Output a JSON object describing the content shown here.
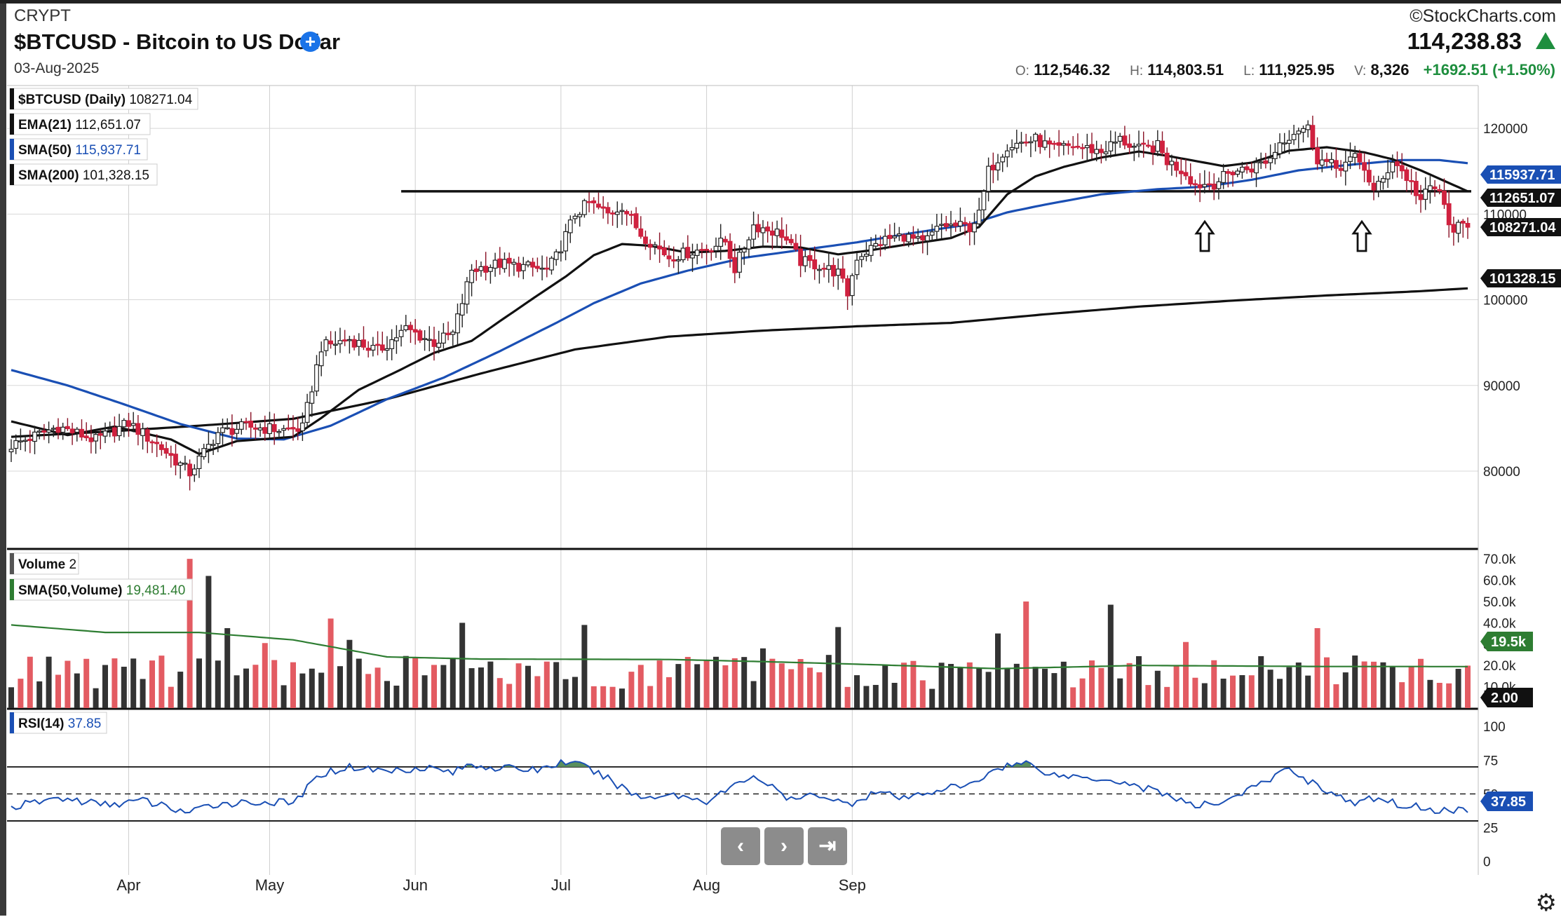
{
  "header": {
    "exchange": "CRYPT",
    "title": "$BTCUSD - Bitcoin to US Dollar",
    "date": "03-Aug-2025",
    "brand": "©StockCharts.com",
    "last_price": "114,238.83",
    "ohlc": {
      "o_label": "O:",
      "o": "112,546.32",
      "h_label": "H:",
      "h": "114,803.51",
      "l_label": "L:",
      "l": "111,925.95",
      "v_label": "V:",
      "v": "8,326",
      "change": "+1692.51 (+1.50%)"
    },
    "up_color": "#1e8e3e"
  },
  "legend": {
    "price": {
      "name": "$BTCUSD (Daily)",
      "value": "108271.04"
    },
    "ema21": {
      "name": "EMA(21)",
      "value": "112,651.07"
    },
    "sma50": {
      "name": "SMA(50)",
      "value": "115,937.71"
    },
    "sma200": {
      "name": "SMA(200)",
      "value": "101,328.15"
    },
    "volume": {
      "name": "Volume",
      "value": "2"
    },
    "vol_sma": {
      "name": "SMA(50,Volume)",
      "value": "19,481.40"
    },
    "rsi": {
      "name": "RSI(14)",
      "value": "37.85"
    }
  },
  "icons": {
    "add": "plus-circle-icon",
    "trend_up": "triangle-up-icon",
    "settings": "gear-icon",
    "prev": "chevron-left-icon",
    "next": "chevron-right-icon",
    "end": "skip-to-end-icon"
  },
  "nav": {
    "prev": "‹",
    "next": "›",
    "end": "⇥"
  },
  "colors": {
    "up": "#ffffff",
    "down": "#d0213f",
    "ema21": "#111111",
    "sma50": "#1a4fb4",
    "sma200": "#111111",
    "vol_up": "#333333",
    "vol_down": "#e35b62",
    "vol_sma": "#2e7d32",
    "rsi": "#1a4fb4",
    "rsi_fill": "#5a8f5e"
  },
  "chart_data": [
    {
      "type": "candlestick",
      "title": "$BTCUSD (Daily)",
      "x_labels": [
        "Apr",
        "May",
        "Jun",
        "Jul",
        "Aug",
        "Sep"
      ],
      "y_ticks": [
        80000,
        90000,
        100000,
        110000,
        120000
      ],
      "y_tick_labels": [
        "80000",
        "90000",
        "100000",
        "110000",
        "120000"
      ],
      "ylim": [
        71000,
        125000
      ],
      "resistance_level": 112651,
      "arrows_at": [
        "2025-08-03",
        "2025-08-23"
      ],
      "last_price_labels": [
        "115937.71",
        "112651.07",
        "108271.04",
        "101328.15"
      ],
      "price_keypoints": [
        [
          0,
          83000
        ],
        [
          10,
          85200
        ],
        [
          18,
          83600
        ],
        [
          25,
          85600
        ],
        [
          32,
          82700
        ],
        [
          38,
          79800
        ],
        [
          44,
          84500
        ],
        [
          50,
          85200
        ],
        [
          58,
          84800
        ],
        [
          62,
          85000
        ],
        [
          66,
          94500
        ],
        [
          72,
          95400
        ],
        [
          78,
          94000
        ],
        [
          84,
          96600
        ],
        [
          90,
          95000
        ],
        [
          94,
          96000
        ],
        [
          98,
          103500
        ],
        [
          104,
          104200
        ],
        [
          110,
          103800
        ],
        [
          114,
          103400
        ],
        [
          116,
          105000
        ],
        [
          120,
          110000
        ],
        [
          123,
          111300
        ],
        [
          127,
          110000
        ],
        [
          130,
          111000
        ],
        [
          134,
          107700
        ],
        [
          140,
          105000
        ],
        [
          148,
          106000
        ],
        [
          152,
          106800
        ],
        [
          154,
          103600
        ],
        [
          158,
          108700
        ],
        [
          164,
          107700
        ],
        [
          168,
          104500
        ],
        [
          172,
          104000
        ],
        [
          176,
          103100
        ],
        [
          178,
          100700
        ],
        [
          180,
          105000
        ],
        [
          186,
          107000
        ],
        [
          190,
          107500
        ],
        [
          194,
          106500
        ],
        [
          198,
          108700
        ],
        [
          204,
          108500
        ],
        [
          206,
          109900
        ],
        [
          208,
          115000
        ],
        [
          212,
          118000
        ],
        [
          214,
          118200
        ],
        [
          218,
          118700
        ],
        [
          222,
          117500
        ],
        [
          226,
          118000
        ],
        [
          232,
          117300
        ],
        [
          236,
          118700
        ],
        [
          240,
          117500
        ],
        [
          244,
          117900
        ],
        [
          246,
          116200
        ],
        [
          250,
          114800
        ],
        [
          252,
          113400
        ],
        [
          256,
          113600
        ],
        [
          260,
          115000
        ],
        [
          264,
          115400
        ],
        [
          268,
          116500
        ],
        [
          270,
          118400
        ],
        [
          274,
          120000
        ],
        [
          276,
          120000
        ],
        [
          278,
          116500
        ],
        [
          282,
          115400
        ],
        [
          286,
          116500
        ],
        [
          288,
          115400
        ],
        [
          290,
          112600
        ],
        [
          292,
          114000
        ],
        [
          294,
          116400
        ],
        [
          296,
          115000
        ],
        [
          298,
          113500
        ],
        [
          300,
          111600
        ],
        [
          302,
          113000
        ],
        [
          304,
          112800
        ],
        [
          306,
          108500
        ],
        [
          308,
          108400
        ],
        [
          310,
          108271
        ]
      ],
      "ema21_keypoints": [
        [
          0,
          85800
        ],
        [
          12,
          84200
        ],
        [
          22,
          85200
        ],
        [
          34,
          83700
        ],
        [
          40,
          82000
        ],
        [
          48,
          83500
        ],
        [
          60,
          84000
        ],
        [
          66,
          86200
        ],
        [
          74,
          89500
        ],
        [
          82,
          91600
        ],
        [
          90,
          93800
        ],
        [
          98,
          95200
        ],
        [
          104,
          97500
        ],
        [
          112,
          100500
        ],
        [
          118,
          102700
        ],
        [
          124,
          105200
        ],
        [
          130,
          106500
        ],
        [
          136,
          106300
        ],
        [
          144,
          105500
        ],
        [
          152,
          105700
        ],
        [
          160,
          106200
        ],
        [
          168,
          106100
        ],
        [
          176,
          105300
        ],
        [
          182,
          105700
        ],
        [
          190,
          106400
        ],
        [
          200,
          107200
        ],
        [
          206,
          108500
        ],
        [
          212,
          112300
        ],
        [
          218,
          114400
        ],
        [
          224,
          115500
        ],
        [
          232,
          116600
        ],
        [
          240,
          117300
        ],
        [
          246,
          116800
        ],
        [
          252,
          116200
        ],
        [
          258,
          115600
        ],
        [
          264,
          116000
        ],
        [
          272,
          117400
        ],
        [
          280,
          117800
        ],
        [
          288,
          117200
        ],
        [
          294,
          116400
        ],
        [
          300,
          115100
        ],
        [
          310,
          112651
        ]
      ],
      "sma50_keypoints": [
        [
          0,
          91800
        ],
        [
          12,
          90000
        ],
        [
          24,
          87800
        ],
        [
          36,
          85500
        ],
        [
          48,
          83800
        ],
        [
          58,
          83700
        ],
        [
          68,
          85300
        ],
        [
          80,
          88400
        ],
        [
          92,
          90900
        ],
        [
          104,
          94000
        ],
        [
          116,
          97300
        ],
        [
          124,
          99600
        ],
        [
          134,
          101900
        ],
        [
          144,
          103400
        ],
        [
          156,
          104900
        ],
        [
          168,
          105800
        ],
        [
          180,
          106700
        ],
        [
          192,
          107800
        ],
        [
          204,
          108800
        ],
        [
          212,
          110200
        ],
        [
          220,
          111100
        ],
        [
          232,
          112300
        ],
        [
          244,
          112900
        ],
        [
          254,
          113200
        ],
        [
          264,
          114000
        ],
        [
          274,
          115100
        ],
        [
          284,
          115700
        ],
        [
          296,
          116300
        ],
        [
          304,
          116300
        ],
        [
          310,
          115937
        ]
      ],
      "sma200_keypoints": [
        [
          0,
          84000
        ],
        [
          20,
          84600
        ],
        [
          40,
          85300
        ],
        [
          60,
          86100
        ],
        [
          80,
          88400
        ],
        [
          100,
          91400
        ],
        [
          120,
          94200
        ],
        [
          140,
          95700
        ],
        [
          160,
          96400
        ],
        [
          180,
          96900
        ],
        [
          200,
          97300
        ],
        [
          220,
          98300
        ],
        [
          240,
          99200
        ],
        [
          260,
          99900
        ],
        [
          280,
          100500
        ],
        [
          300,
          101000
        ],
        [
          310,
          101328
        ]
      ]
    },
    {
      "type": "bar",
      "title": "Volume",
      "y_ticks": [
        10000,
        20000,
        30000,
        40000,
        50000,
        60000,
        70000
      ],
      "y_tick_labels": [
        "10.0k",
        "20.0k",
        "30.0k",
        "40.0k",
        "50.0k",
        "60.0k",
        "70.0k"
      ],
      "ylim": [
        0,
        74000
      ],
      "last_labels": [
        "19.5k",
        "2.00"
      ],
      "volume_spikes": [
        [
          38,
          70000
        ],
        [
          42,
          62000
        ],
        [
          46,
          37500
        ],
        [
          54,
          30500
        ],
        [
          68,
          42000
        ],
        [
          72,
          32000
        ],
        [
          96,
          40000
        ],
        [
          122,
          39000
        ],
        [
          160,
          28000
        ],
        [
          176,
          38000
        ],
        [
          210,
          35000
        ],
        [
          216,
          50000
        ],
        [
          234,
          48500
        ],
        [
          250,
          31000
        ],
        [
          278,
          37500
        ]
      ],
      "sma_keypoints": [
        [
          0,
          39000
        ],
        [
          20,
          35500
        ],
        [
          40,
          35500
        ],
        [
          60,
          32000
        ],
        [
          80,
          24000
        ],
        [
          100,
          23000
        ],
        [
          140,
          22800
        ],
        [
          160,
          21800
        ],
        [
          180,
          20600
        ],
        [
          210,
          18500
        ],
        [
          240,
          20000
        ],
        [
          280,
          19500
        ],
        [
          310,
          19481
        ]
      ]
    },
    {
      "type": "line",
      "title": "RSI(14)",
      "y_ticks": [
        0,
        25,
        50,
        75,
        100
      ],
      "y_tick_labels": [
        "0",
        "25",
        "50",
        "75",
        "100"
      ],
      "ylim": [
        -10,
        112
      ],
      "levels": [
        30,
        50,
        70
      ],
      "last_label": "37.85",
      "rsi_keypoints": [
        [
          0,
          40
        ],
        [
          10,
          47
        ],
        [
          20,
          42
        ],
        [
          28,
          45
        ],
        [
          38,
          36
        ],
        [
          44,
          43
        ],
        [
          54,
          44
        ],
        [
          60,
          43
        ],
        [
          66,
          65
        ],
        [
          72,
          70
        ],
        [
          80,
          67
        ],
        [
          88,
          70
        ],
        [
          94,
          66
        ],
        [
          98,
          72
        ],
        [
          104,
          69
        ],
        [
          112,
          68
        ],
        [
          118,
          74
        ],
        [
          122,
          70
        ],
        [
          126,
          63
        ],
        [
          134,
          47
        ],
        [
          140,
          50
        ],
        [
          148,
          45
        ],
        [
          152,
          52
        ],
        [
          158,
          64
        ],
        [
          166,
          45
        ],
        [
          172,
          50
        ],
        [
          178,
          42
        ],
        [
          184,
          52
        ],
        [
          190,
          46
        ],
        [
          198,
          54
        ],
        [
          204,
          56
        ],
        [
          210,
          70
        ],
        [
          216,
          73
        ],
        [
          222,
          64
        ],
        [
          234,
          61
        ],
        [
          246,
          50
        ],
        [
          252,
          40
        ],
        [
          258,
          45
        ],
        [
          266,
          57
        ],
        [
          272,
          69
        ],
        [
          276,
          60
        ],
        [
          282,
          49
        ],
        [
          286,
          42
        ],
        [
          290,
          47
        ],
        [
          296,
          42
        ],
        [
          304,
          38
        ],
        [
          310,
          37.85
        ]
      ]
    }
  ]
}
